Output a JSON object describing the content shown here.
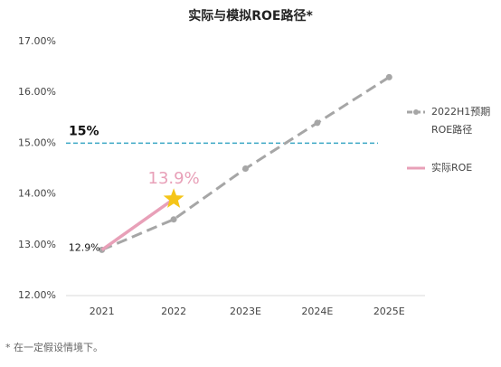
{
  "chart_data": {
    "type": "line",
    "title": "实际与模拟ROE路径*",
    "categories": [
      "2021",
      "2022",
      "2023E",
      "2024E",
      "2025E"
    ],
    "series": [
      {
        "name": "2022H1预期ROE路径",
        "color": "#a6a6a6",
        "dashed": true,
        "values": [
          12.9,
          13.5,
          14.5,
          15.4,
          16.3
        ]
      },
      {
        "name": "实际ROE",
        "color": "#e8a0b8",
        "values": [
          12.9,
          13.9,
          null,
          null,
          null
        ],
        "value_labels": [
          "12.9%",
          "13.9%",
          null,
          null,
          null
        ]
      }
    ],
    "ylim": [
      12,
      17
    ],
    "yticks": [
      {
        "value": 12,
        "label": "12.00%"
      },
      {
        "value": 13,
        "label": "13.00%"
      },
      {
        "value": 14,
        "label": "14.00%"
      },
      {
        "value": 15,
        "label": "15.00%"
      },
      {
        "value": 16,
        "label": "16.00%"
      },
      {
        "value": 17,
        "label": "17.00%"
      }
    ],
    "reference_line": {
      "value": 15,
      "label": "15%",
      "color": "#3aa6c4"
    },
    "footnote": "* 在一定假设情境下。"
  }
}
